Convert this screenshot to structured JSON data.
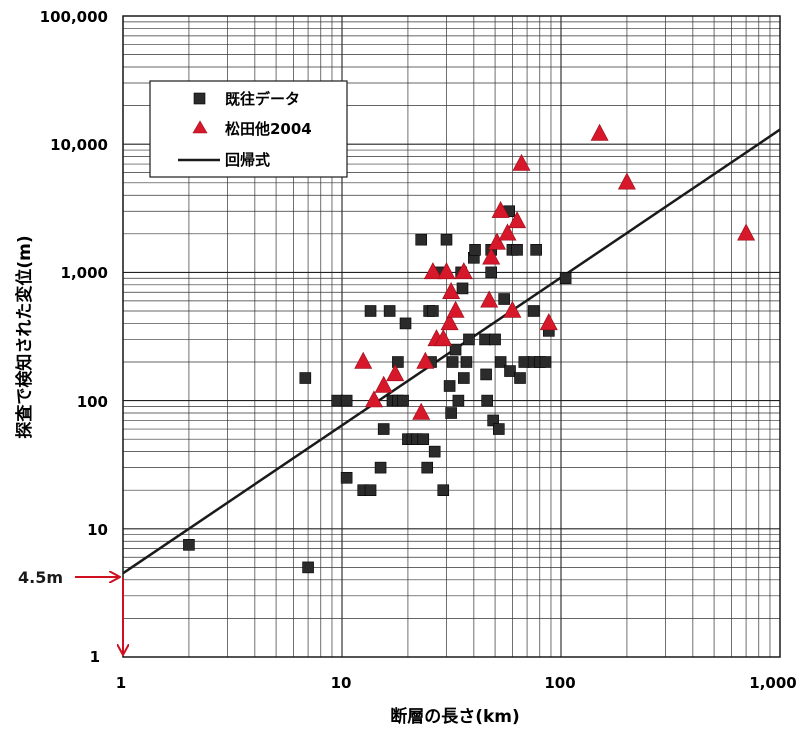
{
  "chart_data": {
    "type": "scatter",
    "x_scale": "log",
    "y_scale": "log",
    "xlim": [
      1,
      1000
    ],
    "ylim": [
      1,
      100000
    ],
    "grid": true,
    "xlabel": "断層の長さ(km)",
    "ylabel": "探査で検知された変位(m)",
    "x_tick_labels": [
      "1",
      "10",
      "100",
      "1,000"
    ],
    "y_tick_labels": [
      "1",
      "10",
      "100",
      "1,000",
      "10,000",
      "100,000"
    ],
    "legend_position": "top-left",
    "legend": {
      "existing": "既往データ",
      "matsuda": "松田他2004",
      "regression": "回帰式"
    },
    "annotation": {
      "label": "4.5m",
      "x": 1,
      "y": 4.5
    },
    "colors": {
      "existing": "#2b2b2b",
      "matsuda": "#d7182a",
      "regression": "#1a1a1a",
      "annotation": "#d01020"
    },
    "regression": {
      "points": [
        [
          1,
          4.5
        ],
        [
          1000,
          13000
        ]
      ]
    },
    "series": [
      {
        "name": "既往データ",
        "marker": "square",
        "points": [
          [
            2,
            7.5
          ],
          [
            7,
            5
          ],
          [
            6.8,
            150
          ],
          [
            9.5,
            100
          ],
          [
            10.5,
            100
          ],
          [
            10.5,
            25
          ],
          [
            12.5,
            20
          ],
          [
            13.5,
            20
          ],
          [
            15,
            30
          ],
          [
            15.5,
            60
          ],
          [
            13.5,
            500
          ],
          [
            16.5,
            500
          ],
          [
            17,
            100
          ],
          [
            18,
            200
          ],
          [
            18,
            100
          ],
          [
            19,
            100
          ],
          [
            19.5,
            400
          ],
          [
            20,
            50
          ],
          [
            21,
            50
          ],
          [
            22,
            50
          ],
          [
            23,
            1800
          ],
          [
            23.5,
            50
          ],
          [
            24.5,
            30
          ],
          [
            25,
            500
          ],
          [
            25.5,
            200
          ],
          [
            26,
            500
          ],
          [
            26.5,
            40
          ],
          [
            28,
            1000
          ],
          [
            29,
            20
          ],
          [
            30,
            1800
          ],
          [
            31,
            130
          ],
          [
            31.5,
            80
          ],
          [
            32,
            200
          ],
          [
            33,
            250
          ],
          [
            34,
            100
          ],
          [
            35,
            1000
          ],
          [
            35.5,
            750
          ],
          [
            36,
            150
          ],
          [
            37,
            200
          ],
          [
            38,
            300
          ],
          [
            40,
            1300
          ],
          [
            40.5,
            1500
          ],
          [
            45,
            300
          ],
          [
            45.5,
            160
          ],
          [
            46,
            100
          ],
          [
            48,
            1000
          ],
          [
            48,
            1500
          ],
          [
            49,
            70
          ],
          [
            50,
            300
          ],
          [
            52,
            60
          ],
          [
            53,
            200
          ],
          [
            55,
            620
          ],
          [
            58,
            3000
          ],
          [
            58.5,
            170
          ],
          [
            60,
            1500
          ],
          [
            63,
            1500
          ],
          [
            65,
            150
          ],
          [
            68,
            200
          ],
          [
            75,
            500
          ],
          [
            75,
            200
          ],
          [
            77,
            1500
          ],
          [
            80,
            200
          ],
          [
            85,
            200
          ],
          [
            88,
            350
          ],
          [
            105,
            900
          ]
        ]
      },
      {
        "name": "松田他2004",
        "marker": "triangle",
        "points": [
          [
            12.5,
            200
          ],
          [
            14,
            100
          ],
          [
            15.5,
            130
          ],
          [
            17.5,
            160
          ],
          [
            23,
            80
          ],
          [
            24,
            200
          ],
          [
            26,
            1000
          ],
          [
            27,
            300
          ],
          [
            29,
            300
          ],
          [
            30,
            1000
          ],
          [
            31,
            400
          ],
          [
            31.5,
            700
          ],
          [
            33,
            500
          ],
          [
            36,
            1000
          ],
          [
            47,
            600
          ],
          [
            48,
            1300
          ],
          [
            51,
            1700
          ],
          [
            53,
            3000
          ],
          [
            57,
            2000
          ],
          [
            60,
            500
          ],
          [
            63,
            2500
          ],
          [
            66,
            7000
          ],
          [
            88,
            400
          ],
          [
            150,
            12000
          ],
          [
            200,
            5000
          ],
          [
            700,
            2000
          ]
        ]
      }
    ]
  }
}
